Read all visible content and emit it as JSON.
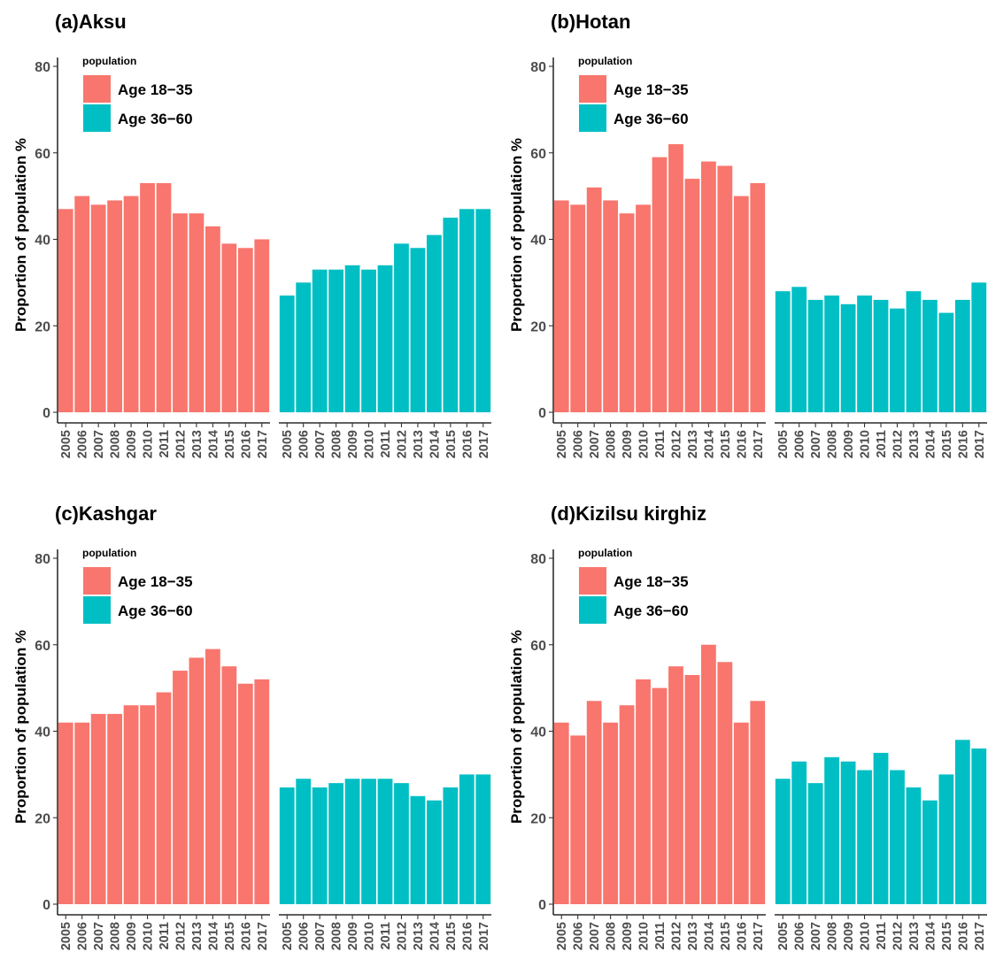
{
  "colors": {
    "age_18_35": "#F8766D",
    "age_36_60": "#00BFC4"
  },
  "chart_data": [
    {
      "type": "bar",
      "title": "(a)Aksu",
      "ylabel": "Proportion of population %",
      "ylim": [
        0,
        80
      ],
      "yticks": [
        0,
        20,
        40,
        60,
        80
      ],
      "legend": {
        "title": "population",
        "placement": "top-left",
        "entries": [
          "Age 18−35",
          "Age 36−60"
        ]
      },
      "facets": [
        {
          "name": "Age 18−35",
          "categories": [
            "2005",
            "2006",
            "2007",
            "2008",
            "2009",
            "2010",
            "2011",
            "2012",
            "2013",
            "2014",
            "2015",
            "2016",
            "2017"
          ],
          "values": [
            47,
            50,
            48,
            49,
            50,
            53,
            53,
            46,
            46,
            43,
            39,
            38,
            40
          ]
        },
        {
          "name": "Age 36−60",
          "categories": [
            "2005",
            "2006",
            "2007",
            "2008",
            "2009",
            "2010",
            "2011",
            "2012",
            "2013",
            "2014",
            "2015",
            "2016",
            "2017"
          ],
          "values": [
            27,
            30,
            33,
            33,
            34,
            33,
            34,
            39,
            38,
            41,
            45,
            47,
            47
          ]
        }
      ]
    },
    {
      "type": "bar",
      "title": "(b)Hotan",
      "ylabel": "Proportion of population %",
      "ylim": [
        0,
        80
      ],
      "yticks": [
        0,
        20,
        40,
        60,
        80
      ],
      "legend": {
        "title": "population",
        "placement": "top-left",
        "entries": [
          "Age 18−35",
          "Age 36−60"
        ]
      },
      "facets": [
        {
          "name": "Age 18−35",
          "categories": [
            "2005",
            "2006",
            "2007",
            "2008",
            "2009",
            "2010",
            "2011",
            "2012",
            "2013",
            "2014",
            "2015",
            "2016",
            "2017"
          ],
          "values": [
            49,
            48,
            52,
            49,
            46,
            48,
            59,
            62,
            54,
            58,
            57,
            50,
            53
          ]
        },
        {
          "name": "Age 36−60",
          "categories": [
            "2005",
            "2006",
            "2007",
            "2008",
            "2009",
            "2010",
            "2011",
            "2012",
            "2013",
            "2014",
            "2015",
            "2016",
            "2017"
          ],
          "values": [
            28,
            29,
            26,
            27,
            25,
            27,
            26,
            24,
            28,
            26,
            23,
            26,
            30
          ]
        }
      ]
    },
    {
      "type": "bar",
      "title": "(c)Kashgar",
      "ylabel": "Proportion of population %",
      "ylim": [
        0,
        80
      ],
      "yticks": [
        0,
        20,
        40,
        60,
        80
      ],
      "legend": {
        "title": "population",
        "placement": "top-left",
        "entries": [
          "Age 18−35",
          "Age 36−60"
        ]
      },
      "facets": [
        {
          "name": "Age 18−35",
          "categories": [
            "2005",
            "2006",
            "2007",
            "2008",
            "2009",
            "2010",
            "2011",
            "2012",
            "2013",
            "2014",
            "2015",
            "2016",
            "2017"
          ],
          "values": [
            42,
            42,
            44,
            44,
            46,
            46,
            49,
            54,
            57,
            59,
            55,
            51,
            52
          ]
        },
        {
          "name": "Age 36−60",
          "categories": [
            "2005",
            "2006",
            "2007",
            "2008",
            "2009",
            "2010",
            "2011",
            "2012",
            "2013",
            "2014",
            "2015",
            "2016",
            "2017"
          ],
          "values": [
            27,
            29,
            27,
            28,
            29,
            29,
            29,
            28,
            25,
            24,
            27,
            30,
            30
          ]
        }
      ]
    },
    {
      "type": "bar",
      "title": "(d)Kizilsu kirghiz",
      "ylabel": "Proportion of population %",
      "ylim": [
        0,
        80
      ],
      "yticks": [
        0,
        20,
        40,
        60,
        80
      ],
      "legend": {
        "title": "population",
        "placement": "top-left",
        "entries": [
          "Age 18−35",
          "Age 36−60"
        ]
      },
      "facets": [
        {
          "name": "Age 18−35",
          "categories": [
            "2005",
            "2006",
            "2007",
            "2008",
            "2009",
            "2010",
            "2011",
            "2012",
            "2013",
            "2014",
            "2015",
            "2016",
            "2017"
          ],
          "values": [
            42,
            39,
            47,
            42,
            46,
            52,
            50,
            55,
            53,
            60,
            56,
            42,
            47
          ]
        },
        {
          "name": "Age 36−60",
          "categories": [
            "2005",
            "2006",
            "2007",
            "2008",
            "2009",
            "2010",
            "2011",
            "2012",
            "2013",
            "2014",
            "2015",
            "2016",
            "2017"
          ],
          "values": [
            29,
            33,
            28,
            34,
            33,
            31,
            35,
            31,
            27,
            24,
            30,
            38,
            36
          ]
        }
      ]
    }
  ]
}
